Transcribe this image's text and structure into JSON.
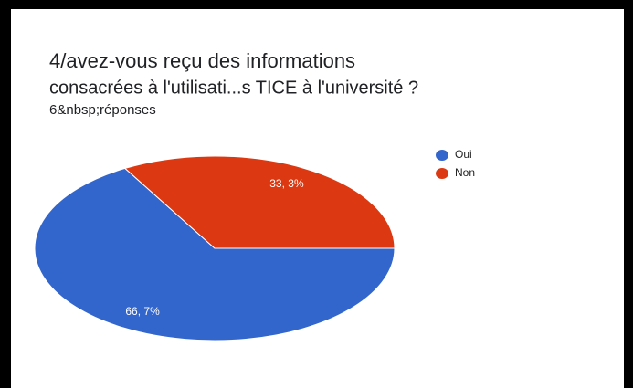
{
  "chart_data": {
    "type": "pie",
    "title": [
      "4/avez-vous reçu des informations",
      "consacrées à l'utilisati...s TICE à l'université ?"
    ],
    "subtitle": "6&nbsp;réponses",
    "categories": [
      "Oui",
      "Non"
    ],
    "values": [
      66.7,
      33.3
    ],
    "value_labels": [
      "66, 7%",
      "33, 3%"
    ],
    "colors": [
      "#3366cc",
      "#dc3912"
    ],
    "legend": "right"
  }
}
